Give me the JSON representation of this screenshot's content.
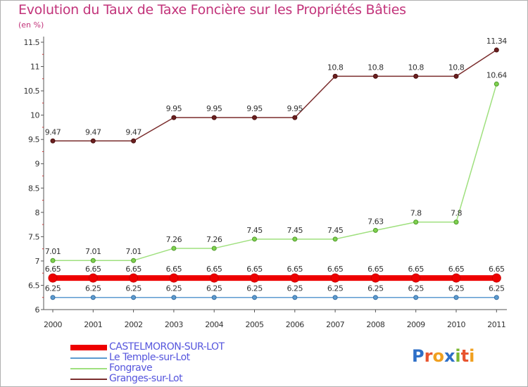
{
  "title": "Evolution du Taux de Taxe Foncière sur les Propriétés Bâties",
  "unit_label": "(en %)",
  "logo": {
    "text": "Proxiti",
    "letters": [
      "P",
      "r",
      "o",
      "x",
      "i",
      "t",
      "i"
    ],
    "colors": [
      "#2e6fc7",
      "#e8542f",
      "#f0a020",
      "#2e6fc7",
      "#7ab833",
      "#e8542f",
      "#f0a020"
    ]
  },
  "chart_data": {
    "type": "line",
    "title": "Evolution du Taux de Taxe Foncière sur les Propriétés Bâties",
    "xlabel": "",
    "ylabel": "(en %)",
    "categories": [
      "2000",
      "2001",
      "2002",
      "2003",
      "2004",
      "2005",
      "2006",
      "2007",
      "2008",
      "2009",
      "2010",
      "2011"
    ],
    "ylim": [
      6,
      11.5
    ],
    "yticks": [
      "6",
      "6.5",
      "7",
      "7.5",
      "8",
      "8.5",
      "9",
      "9.5",
      "10",
      "10.5",
      "11",
      "11.5"
    ],
    "grid": false,
    "series": [
      {
        "name": "CASTELMORON-SUR-LOT",
        "color": "#ee0000",
        "values": [
          6.65,
          6.65,
          6.65,
          6.65,
          6.65,
          6.65,
          6.65,
          6.65,
          6.65,
          6.65,
          6.65,
          6.65
        ],
        "labels": [
          "6.65",
          "6.65",
          "6.65",
          "6.65",
          "6.65",
          "6.65",
          "6.65",
          "6.65",
          "6.65",
          "6.65",
          "6.65",
          "6.65"
        ]
      },
      {
        "name": "Le Temple-sur-Lot",
        "color": "#5c9bd1",
        "values": [
          6.25,
          6.25,
          6.25,
          6.25,
          6.25,
          6.25,
          6.25,
          6.25,
          6.25,
          6.25,
          6.25,
          6.25
        ],
        "labels": [
          "6.25",
          "6.25",
          "6.25",
          "6.25",
          "6.25",
          "6.25",
          "6.25",
          "6.25",
          "6.25",
          "6.25",
          "6.25",
          "6.25"
        ]
      },
      {
        "name": "Fongrave",
        "color": "#9fe07e",
        "values": [
          7.01,
          7.01,
          7.01,
          7.26,
          7.26,
          7.45,
          7.45,
          7.45,
          7.63,
          7.8,
          7.8,
          10.64
        ],
        "labels": [
          "7.01",
          "7.01",
          "7.01",
          "7.26",
          "7.26",
          "7.45",
          "7.45",
          "7.45",
          "7.63",
          "7.8",
          "7.8",
          "10.64"
        ]
      },
      {
        "name": "Granges-sur-Lot",
        "color": "#7a2c2c",
        "values": [
          9.47,
          9.47,
          9.47,
          9.95,
          9.95,
          9.95,
          9.95,
          10.8,
          10.8,
          10.8,
          10.8,
          11.34
        ],
        "labels": [
          "9.47",
          "9.47",
          "9.47",
          "9.95",
          "9.95",
          "9.95",
          "9.95",
          "10.8",
          "10.8",
          "10.8",
          "10.8",
          "11.34"
        ]
      }
    ]
  }
}
